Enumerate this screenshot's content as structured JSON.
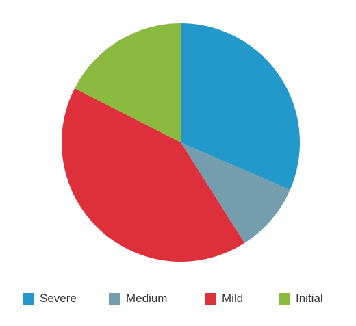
{
  "chart_data": {
    "type": "pie",
    "title": "",
    "start_angle_deg": 0,
    "direction": "clockwise",
    "categories": [
      "Severe",
      "Medium",
      "Mild",
      "Initial"
    ],
    "values": [
      31.5,
      9.5,
      41.5,
      17.5
    ],
    "colors": [
      "#2399cb",
      "#749eae",
      "#dd303a",
      "#8bb83f"
    ],
    "series": [
      {
        "name": "Severe",
        "value": 31.5,
        "color": "#2399cb"
      },
      {
        "name": "Medium",
        "value": 9.5,
        "color": "#749eae"
      },
      {
        "name": "Mild",
        "value": 41.5,
        "color": "#dd303a"
      },
      {
        "name": "Initial",
        "value": 17.5,
        "color": "#8bb83f"
      }
    ],
    "legend": {
      "position": "bottom",
      "items": [
        {
          "label": "Severe",
          "color": "#2399cb"
        },
        {
          "label": "Medium",
          "color": "#749eae"
        },
        {
          "label": "Mild",
          "color": "#dd303a"
        },
        {
          "label": "Initial",
          "color": "#8bb83f"
        }
      ]
    }
  }
}
